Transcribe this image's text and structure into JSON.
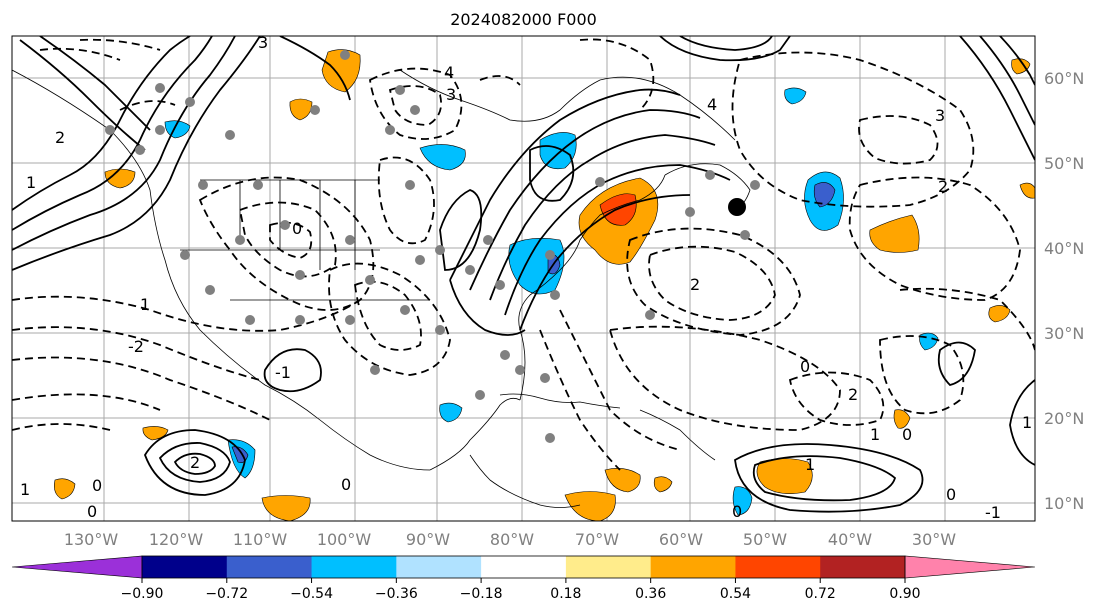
{
  "title": "2024082000 F000",
  "map": {
    "lon_ticks": [
      "130°W",
      "120°W",
      "110°W",
      "100°W",
      "90°W",
      "80°W",
      "70°W",
      "60°W",
      "50°W",
      "40°W",
      "30°W"
    ],
    "lat_ticks": [
      "60°N",
      "50°N",
      "40°N",
      "30°N",
      "20°N",
      "10°N"
    ],
    "contour_labels": [
      "4",
      "3",
      "2",
      "1",
      "0",
      "-1",
      "-2",
      "4",
      "3",
      "2",
      "1",
      "0",
      "0",
      "0",
      "1",
      "2",
      "2",
      "3",
      "1",
      "0",
      "1",
      "2",
      "0",
      "0",
      "-1",
      "1",
      "0",
      "1"
    ]
  },
  "colorbar": {
    "ticks": [
      "−0.90",
      "−0.72",
      "−0.54",
      "−0.36",
      "−0.18",
      "0.18",
      "0.36",
      "0.54",
      "0.72",
      "0.90"
    ],
    "colors": [
      "#9b30d9",
      "#00008b",
      "#3a5fcd",
      "#00bfff",
      "#b0e2ff",
      "#ffffff",
      "#ffec8b",
      "#ffa500",
      "#ff4500",
      "#b22222",
      "#ff82ab"
    ]
  }
}
